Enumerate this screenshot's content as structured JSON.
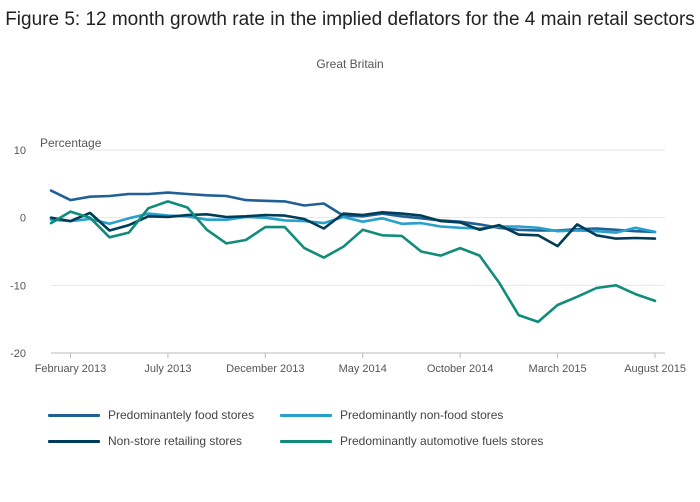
{
  "chart_data": {
    "type": "line",
    "title": "Figure 5: 12 month growth rate in the implied deflators for the 4 main retail sectors",
    "subtitle": "Great Britain",
    "ylabel": "Percentage",
    "ylim": [
      -20,
      10
    ],
    "yticks": [
      "10",
      "0",
      "-10",
      "-20"
    ],
    "grid": true,
    "legend": "bottom",
    "x": [
      "2013-01",
      "2013-02",
      "2013-03",
      "2013-04",
      "2013-05",
      "2013-06",
      "2013-07",
      "2013-08",
      "2013-09",
      "2013-10",
      "2013-11",
      "2013-12",
      "2014-01",
      "2014-02",
      "2014-03",
      "2014-04",
      "2014-05",
      "2014-06",
      "2014-07",
      "2014-08",
      "2014-09",
      "2014-10",
      "2014-11",
      "2014-12",
      "2015-01",
      "2015-02",
      "2015-03",
      "2015-04",
      "2015-05",
      "2015-06",
      "2015-07",
      "2015-08"
    ],
    "xticks": [
      {
        "at": "2013-02",
        "label": "February 2013"
      },
      {
        "at": "2013-07",
        "label": "July 2013"
      },
      {
        "at": "2013-12",
        "label": "December 2013"
      },
      {
        "at": "2014-05",
        "label": "May 2014"
      },
      {
        "at": "2014-10",
        "label": "October 2014"
      },
      {
        "at": "2015-03",
        "label": "March 2015"
      },
      {
        "at": "2015-08",
        "label": "August 2015"
      }
    ],
    "series": [
      {
        "name": "Predominantely food stores",
        "color": "#206095",
        "values": [
          4.0,
          2.6,
          3.1,
          3.2,
          3.5,
          3.5,
          3.7,
          3.5,
          3.3,
          3.2,
          2.6,
          2.5,
          2.4,
          1.8,
          2.1,
          0.3,
          0.2,
          0.6,
          0.2,
          -0.1,
          -0.4,
          -0.6,
          -1.0,
          -1.5,
          -1.8,
          -1.9,
          -1.9,
          -1.7,
          -1.6,
          -1.8,
          -2.0,
          -2.1
        ]
      },
      {
        "name": "Predominantly non-food stores",
        "color": "#27a0cc",
        "values": [
          -0.3,
          -0.5,
          -0.2,
          -0.9,
          -0.1,
          0.6,
          0.3,
          0.2,
          -0.3,
          -0.3,
          0.1,
          0.0,
          -0.4,
          -0.5,
          -0.8,
          0.1,
          -0.6,
          -0.1,
          -0.9,
          -0.8,
          -1.3,
          -1.5,
          -1.6,
          -1.3,
          -1.3,
          -1.5,
          -2.0,
          -1.9,
          -2.0,
          -2.2,
          -1.5,
          -2.1
        ]
      },
      {
        "name": "Non-store retailing stores",
        "color": "#003c57",
        "values": [
          0.0,
          -0.5,
          0.7,
          -1.9,
          -1.1,
          0.2,
          0.1,
          0.4,
          0.5,
          0.1,
          0.2,
          0.4,
          0.3,
          -0.2,
          -1.6,
          0.6,
          0.4,
          0.8,
          0.6,
          0.3,
          -0.5,
          -0.7,
          -1.8,
          -1.1,
          -2.5,
          -2.6,
          -4.2,
          -1.0,
          -2.6,
          -3.1,
          -3.0,
          -3.1
        ]
      },
      {
        "name": "Predominantly automotive fuels stores",
        "color": "#118c7b",
        "values": [
          -0.8,
          0.9,
          0.0,
          -2.9,
          -2.2,
          1.4,
          2.4,
          1.5,
          -1.8,
          -3.8,
          -3.3,
          -1.4,
          -1.4,
          -4.5,
          -5.9,
          -4.3,
          -1.8,
          -2.6,
          -2.7,
          -5.0,
          -5.6,
          -4.5,
          -5.6,
          -9.6,
          -14.4,
          -15.4,
          -12.9,
          -11.7,
          -10.4,
          -10.0,
          -11.3,
          -12.3
        ]
      }
    ]
  }
}
